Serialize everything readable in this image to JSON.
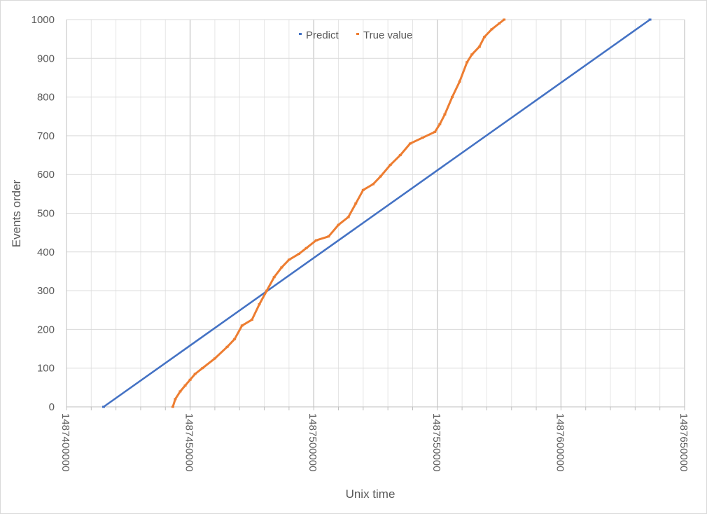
{
  "chart_data": {
    "type": "scatter",
    "title": "",
    "xlabel": "Unix time",
    "ylabel": "Events order",
    "xlim": [
      1487400000,
      1487650000
    ],
    "ylim": [
      0,
      1000
    ],
    "x_ticks": [
      "1487400000",
      "1487450000",
      "1487500000",
      "1487550000",
      "1487600000",
      "1487650000"
    ],
    "y_ticks": [
      "0",
      "100",
      "200",
      "300",
      "400",
      "500",
      "600",
      "700",
      "800",
      "900",
      "1000"
    ],
    "grid": true,
    "legend_position": "top-center",
    "series": [
      {
        "name": "Predict",
        "color": "#4472c4",
        "x": [
          1487415000,
          1487636000
        ],
        "y": [
          0,
          1000
        ]
      },
      {
        "name": "True value",
        "color": "#ed7d31",
        "x": [
          1487443000,
          1487444000,
          1487446000,
          1487448000,
          1487450000,
          1487452000,
          1487455000,
          1487460000,
          1487465000,
          1487468000,
          1487471000,
          1487475000,
          1487478000,
          1487481000,
          1487484000,
          1487487000,
          1487490000,
          1487494000,
          1487497000,
          1487501000,
          1487506000,
          1487510000,
          1487514000,
          1487517000,
          1487520000,
          1487524000,
          1487527000,
          1487531000,
          1487535000,
          1487539000,
          1487544000,
          1487549000,
          1487551000,
          1487553000,
          1487556000,
          1487559000,
          1487562000,
          1487564000,
          1487567000,
          1487569000,
          1487572000,
          1487575000,
          1487577000
        ],
        "y": [
          0,
          20,
          40,
          55,
          70,
          85,
          100,
          125,
          155,
          175,
          210,
          225,
          265,
          300,
          335,
          360,
          380,
          395,
          410,
          430,
          440,
          470,
          490,
          525,
          560,
          575,
          595,
          625,
          650,
          680,
          695,
          710,
          730,
          755,
          800,
          840,
          890,
          910,
          930,
          955,
          975,
          990,
          1000
        ]
      }
    ]
  }
}
